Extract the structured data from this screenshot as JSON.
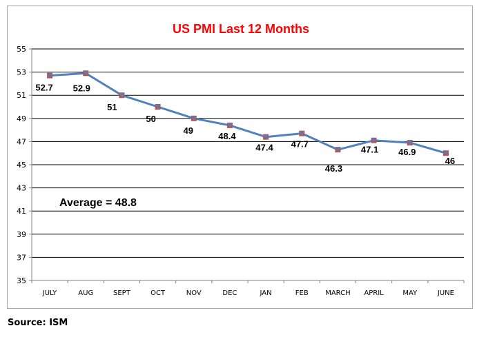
{
  "chart_data": {
    "type": "line",
    "title": "US PMI Last 12 Months",
    "categories": [
      "JULY",
      "AUG",
      "SEPT",
      "OCT",
      "NOV",
      "DEC",
      "JAN",
      "FEB",
      "MARCH",
      "APRIL",
      "MAY",
      "JUNE"
    ],
    "series": [
      {
        "values": [
          52.7,
          52.9,
          51,
          50,
          49,
          48.4,
          47.4,
          47.7,
          46.3,
          47.1,
          46.9,
          46
        ],
        "data_labels": [
          "52.7",
          "52.9",
          "51",
          "50",
          "49",
          "48.4",
          "47.4",
          "47.7",
          "46.3",
          "47.1",
          "46.9",
          "46"
        ],
        "line_color": "#4f81bd",
        "marker_color": "#c0504d"
      }
    ],
    "ylim": [
      35,
      55
    ],
    "yticks": [
      "35",
      "37",
      "39",
      "41",
      "43",
      "45",
      "47",
      "49",
      "51",
      "53",
      "55"
    ],
    "grid": true,
    "annotation": "Average = 48.8"
  },
  "source": "Source: ISM",
  "colors": {
    "title": "#ff0000",
    "grid": "#000000",
    "axis": "#808080",
    "frame": "#a6a6a6"
  }
}
